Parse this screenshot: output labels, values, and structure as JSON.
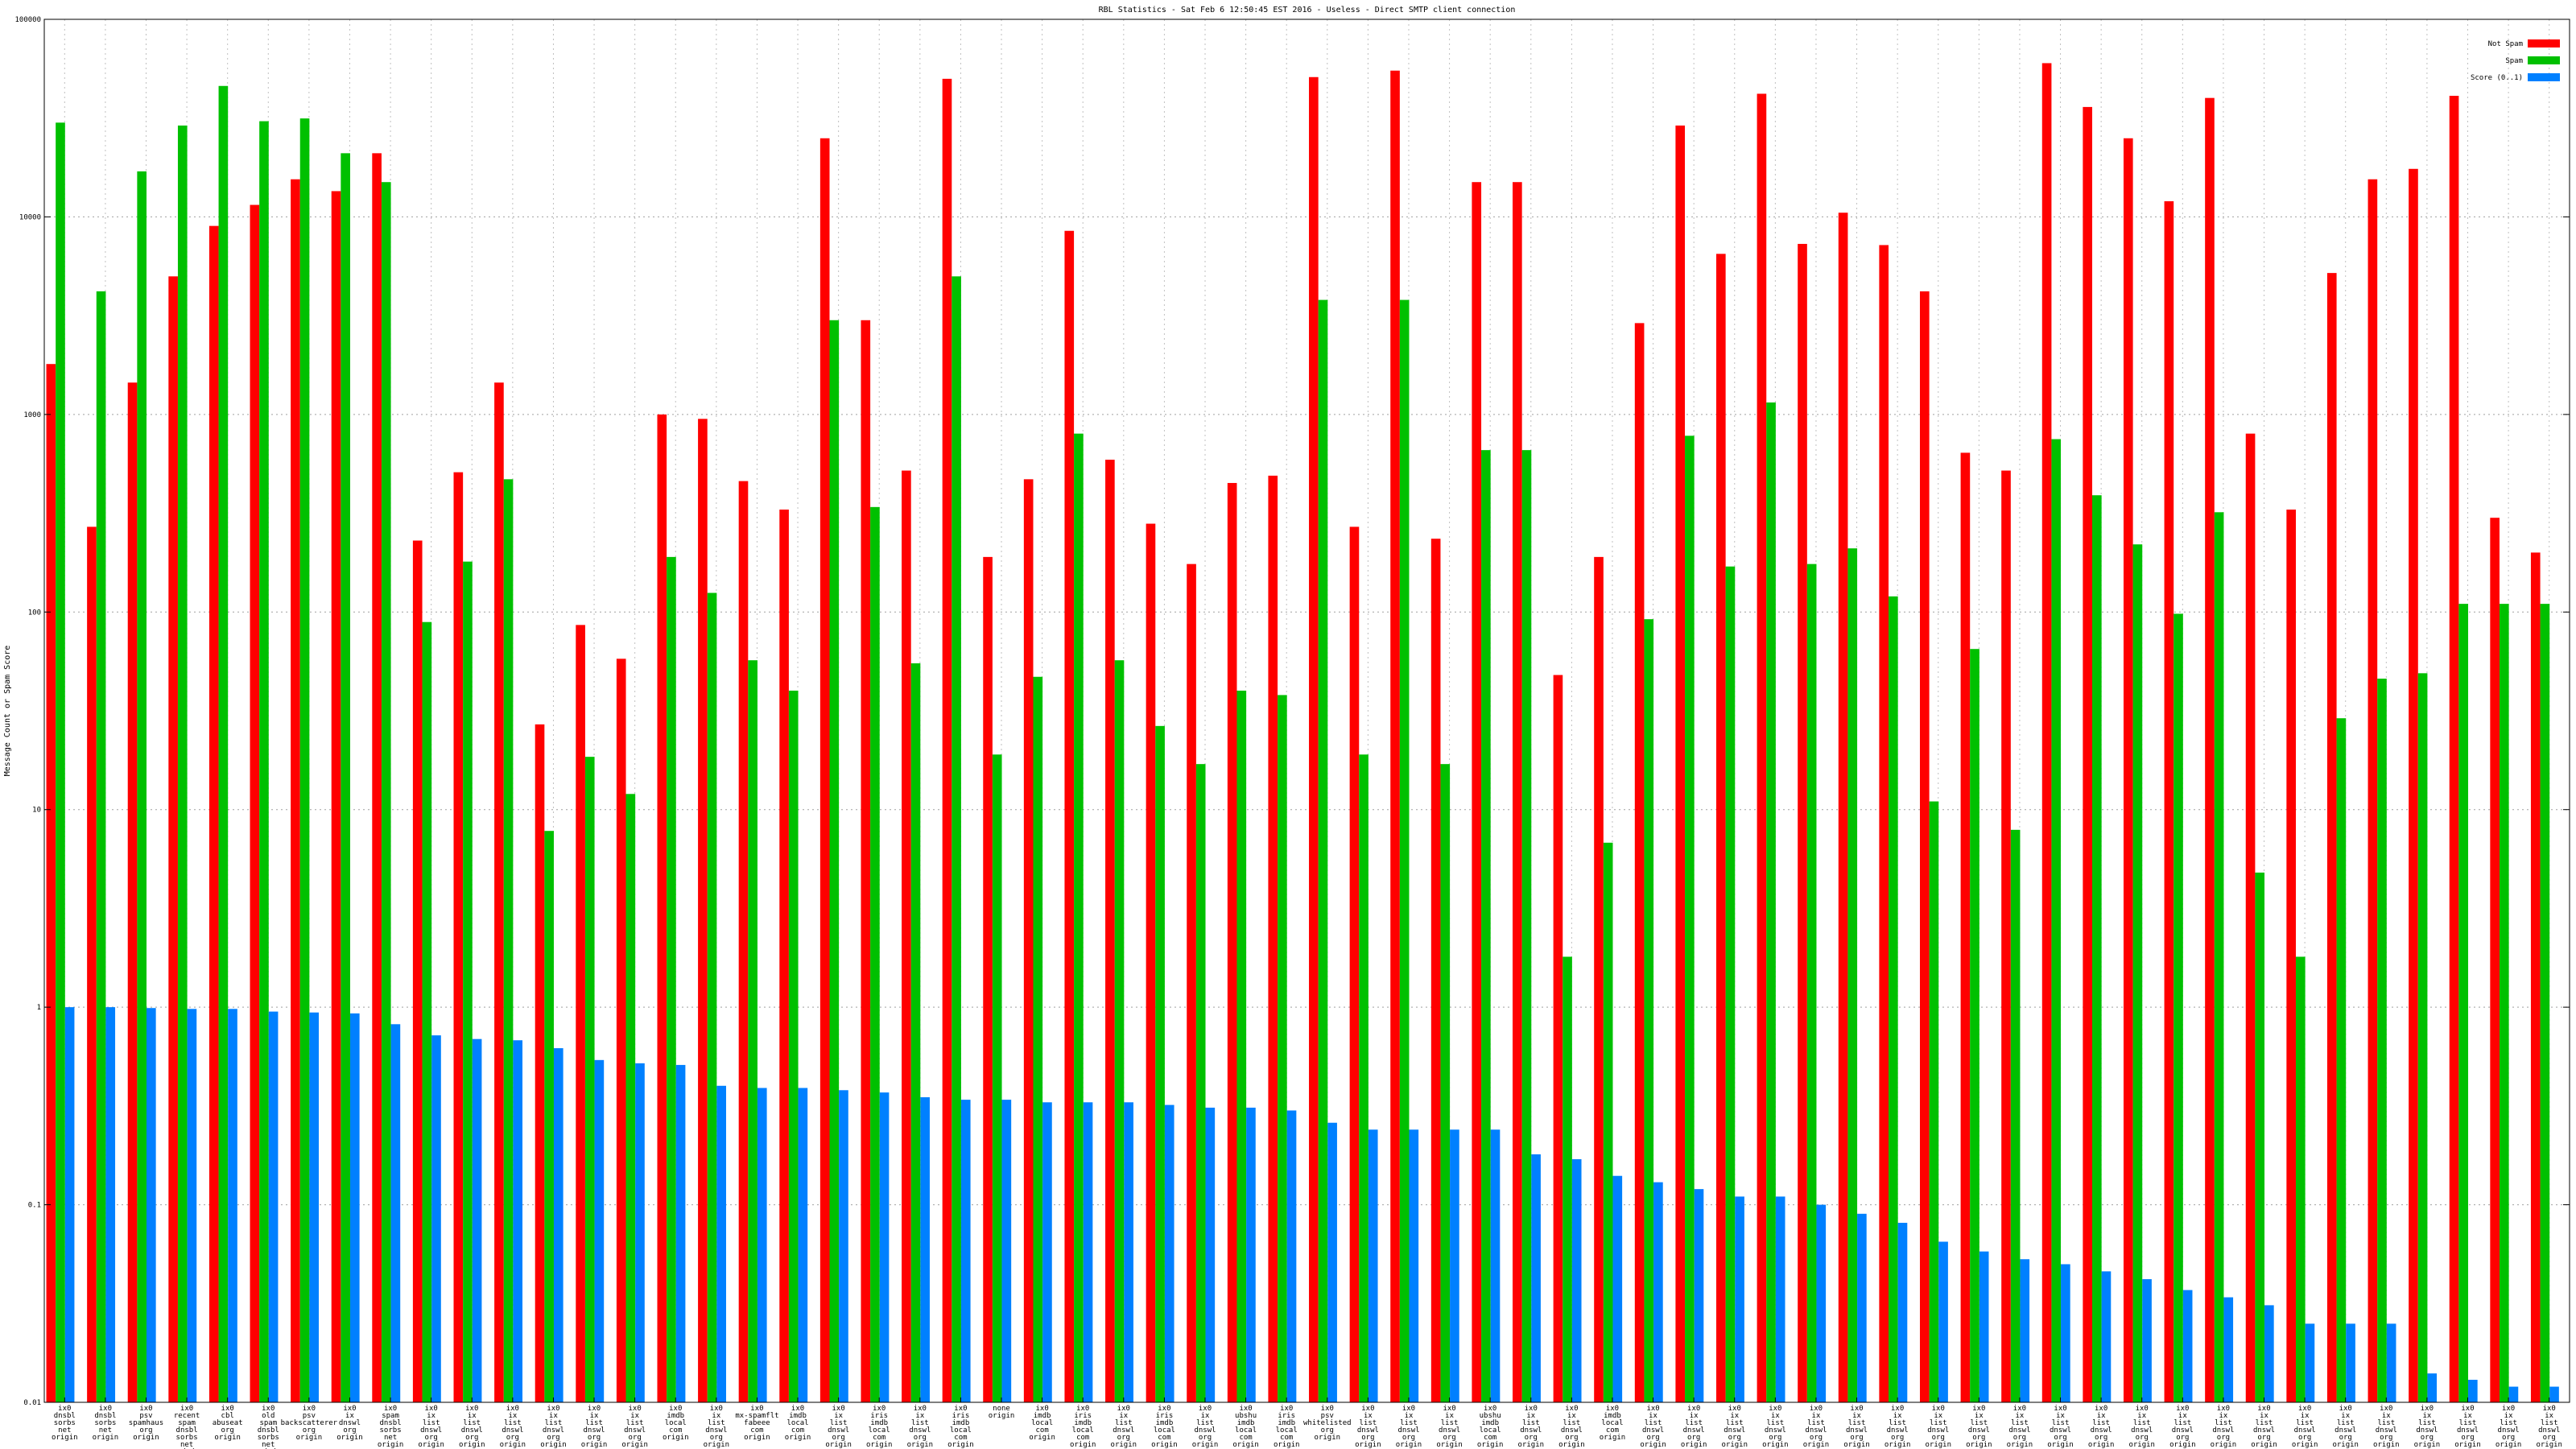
{
  "chart_data": {
    "type": "bar",
    "title": "RBL Statistics - Sat Feb  6 12:50:45 EST 2016 - Useless - Direct SMTP client connection",
    "xlabel": "",
    "ylabel": "Message Count or Spam Score",
    "y_scale": "log",
    "ylim": [
      0.01,
      100000
    ],
    "y_ticks": [
      {
        "value": 0.01,
        "label": "0.01"
      },
      {
        "value": 0.1,
        "label": "0.1"
      },
      {
        "value": 1,
        "label": "1"
      },
      {
        "value": 10,
        "label": "10"
      },
      {
        "value": 100,
        "label": "100"
      },
      {
        "value": 1000,
        "label": "1000"
      },
      {
        "value": 10000,
        "label": "10000"
      },
      {
        "value": 100000,
        "label": "100000"
      }
    ],
    "grid": true,
    "legend_position": "top-right",
    "colors": {
      "notspam": "#ff0000",
      "spam": "#00c000",
      "score": "#0080ff"
    },
    "categories": [
      "ix0 dnsbl sorbs net origin",
      "ix0 dnsbl sorbs net origin",
      "ix0 psv spamhaus org origin",
      "ix0 recent spam dnsbl sorbs net origin",
      "ix0 cbl abuseat org origin",
      "ix0 old spam dnsbl sorbs net origin",
      "ix0 psv backscatterer org origin",
      "ix0 ix dnswl org origin",
      "ix0 spam dnsbl sorbs net origin",
      "ix0 ix list dnswl org origin",
      "ix0 ix list dnswl org origin",
      "ix0 ix list dnswl org origin",
      "ix0 ix list dnswl org origin",
      "ix0 ix list dnswl org origin",
      "ix0 ix list dnswl org origin",
      "ix0 imdb local com origin",
      "ix0 ix list dnswl org origin",
      "ix0 mx-spamflt fabeee com origin",
      "ix0 imdb local com origin",
      "ix0 ix list dnswl org origin",
      "ix0 iris imdb local com origin",
      "ix0 ix list dnswl org origin",
      "ix0 iris imdb local com origin",
      "none origin",
      "ix0 imdb local com origin",
      "ix0 iris imdb local com origin",
      "ix0 ix list dnswl org origin",
      "ix0 iris imdb local com origin",
      "ix0 ix list dnswl org origin",
      "ix0 ubshu imdb local com origin",
      "ix0 iris imdb local com origin",
      "ix0 psv whitelisted org origin",
      "ix0 ix list dnswl org origin",
      "ix0 ix list dnswl org origin",
      "ix0 ix list dnswl org origin",
      "ix0 ubshu imdb local com origin",
      "ix0 ix list dnswl org origin",
      "ix0 ix list dnswl org origin",
      "ix0 imdb local com origin",
      "ix0 ix list dnswl org origin",
      "ix0 ix list dnswl org origin",
      "ix0 ix list dnswl org origin",
      "ix0 ix list dnswl org origin",
      "ix0 ix list dnswl org origin",
      "ix0 ix list dnswl org origin",
      "ix0 ix list dnswl org origin",
      "ix0 ix list dnswl org origin",
      "ix0 ix list dnswl org origin",
      "ix0 ix list dnswl org origin",
      "ix0 ix list dnswl org origin",
      "ix0 ix list dnswl org origin",
      "ix0 ix list dnswl org origin",
      "ix0 ix list dnswl org origin",
      "ix0 ix list dnswl org origin",
      "ix0 ix list dnswl org origin",
      "ix0 ix list dnswl org origin",
      "ix0 ix list dnswl org origin",
      "ix0 ix list dnswl org origin",
      "ix0 ix list dnswl org origin",
      "ix0 ix list dnswl org origin",
      "ix0 ix list dnswl org origin",
      "ix0 ix list dnswl org origin"
    ],
    "series": [
      {
        "name": "Not Spam",
        "values": [
          1800,
          270,
          1450,
          5000,
          9000,
          11500,
          15500,
          13500,
          21000,
          230,
          510,
          1450,
          27,
          86,
          58,
          1000,
          950,
          460,
          330,
          25000,
          3000,
          520,
          50000,
          190,
          470,
          8500,
          590,
          280,
          175,
          450,
          490,
          51000,
          270,
          55000,
          235,
          15000,
          15000,
          48,
          190,
          2900,
          29000,
          6500,
          42000,
          7300,
          10500,
          7200,
          4200,
          640,
          520,
          60000,
          36000,
          25000,
          12000,
          40000,
          800,
          330,
          5200,
          15500,
          17500,
          41000,
          300,
          200
        ]
      },
      {
        "name": "Spam",
        "values": [
          30000,
          4200,
          17000,
          29000,
          46000,
          30500,
          31500,
          21000,
          15000,
          89,
          180,
          470,
          7.8,
          18.5,
          12,
          190,
          125,
          57,
          40,
          3000,
          340,
          55,
          5000,
          19,
          47,
          800,
          57,
          26.5,
          17,
          40,
          38,
          3800,
          19,
          3800,
          17,
          660,
          660,
          1.8,
          6.8,
          92,
          780,
          170,
          1150,
          175,
          210,
          120,
          11,
          65,
          7.9,
          750,
          390,
          220,
          98,
          320,
          4.8,
          1.8,
          29,
          46,
          49,
          110,
          110,
          110
        ]
      },
      {
        "name": "Score (0..1)",
        "values": [
          1.0,
          1.0,
          0.99,
          0.98,
          0.98,
          0.95,
          0.94,
          0.93,
          0.82,
          0.72,
          0.69,
          0.68,
          0.62,
          0.54,
          0.52,
          0.51,
          0.4,
          0.39,
          0.39,
          0.38,
          0.37,
          0.35,
          0.34,
          0.34,
          0.33,
          0.33,
          0.33,
          0.32,
          0.31,
          0.31,
          0.3,
          0.26,
          0.24,
          0.24,
          0.24,
          0.24,
          0.18,
          0.17,
          0.14,
          0.13,
          0.12,
          0.11,
          0.11,
          0.1,
          0.09,
          0.081,
          0.065,
          0.058,
          0.053,
          0.05,
          0.046,
          0.042,
          0.037,
          0.034,
          0.031,
          0.025,
          0.025,
          0.025,
          0.014,
          0.013,
          0.012,
          0.012
        ]
      }
    ]
  }
}
